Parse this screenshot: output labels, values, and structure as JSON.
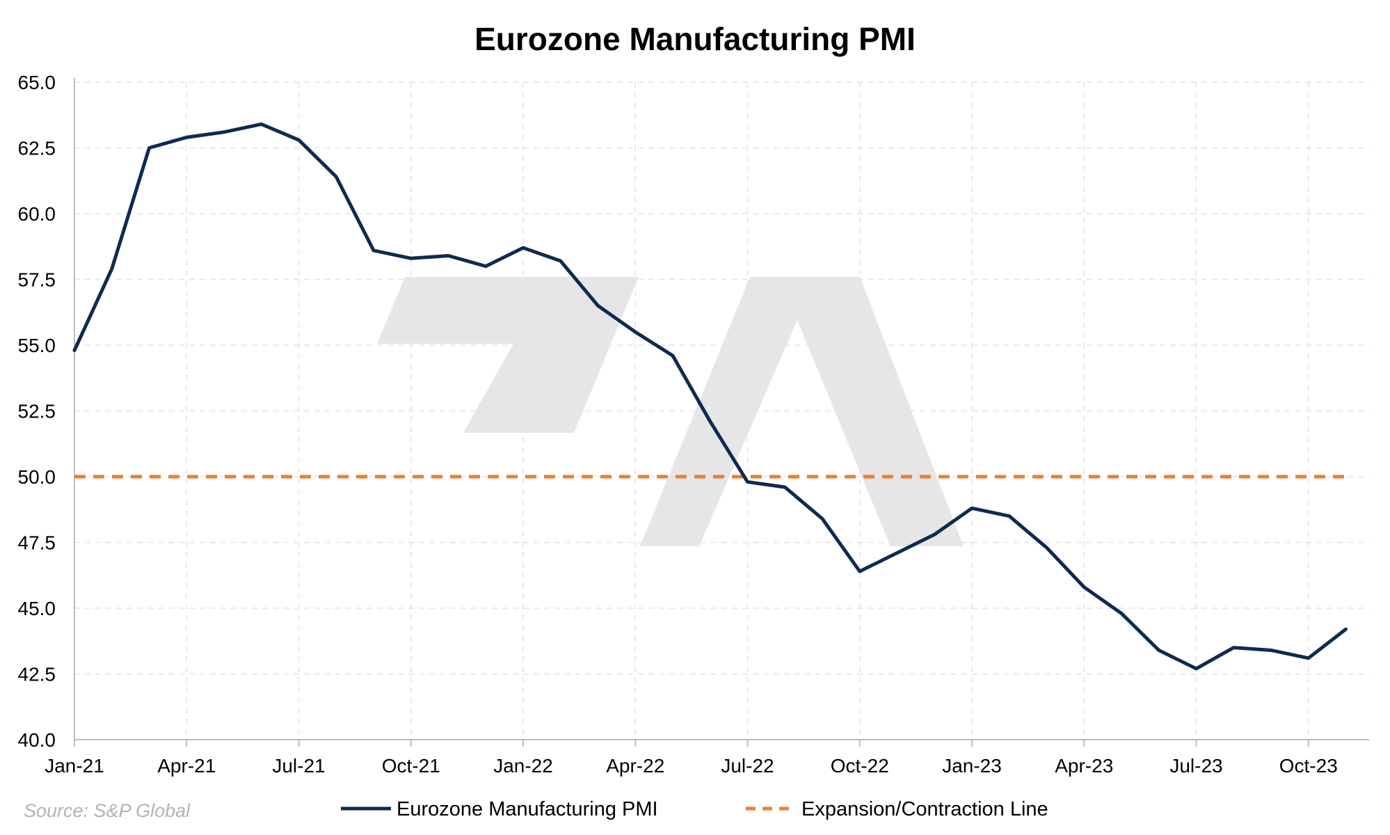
{
  "chart_data": {
    "type": "line",
    "title": "Eurozone Manufacturing PMI",
    "xlabel": "",
    "ylabel": "",
    "ylim": [
      40.0,
      65.0
    ],
    "yticks": [
      "40.0",
      "42.5",
      "45.0",
      "47.5",
      "50.0",
      "52.5",
      "55.0",
      "57.5",
      "60.0",
      "62.5",
      "65.0"
    ],
    "xticks": [
      {
        "label": "Jan-21",
        "index": 0
      },
      {
        "label": "Apr-21",
        "index": 3
      },
      {
        "label": "Jul-21",
        "index": 6
      },
      {
        "label": "Oct-21",
        "index": 9
      },
      {
        "label": "Jan-22",
        "index": 12
      },
      {
        "label": "Apr-22",
        "index": 15
      },
      {
        "label": "Jul-22",
        "index": 18
      },
      {
        "label": "Oct-22",
        "index": 21
      },
      {
        "label": "Jan-23",
        "index": 24
      },
      {
        "label": "Apr-23",
        "index": 27
      },
      {
        "label": "Jul-23",
        "index": 30
      },
      {
        "label": "Oct-23",
        "index": 33
      }
    ],
    "x": [
      "Jan-21",
      "Feb-21",
      "Mar-21",
      "Apr-21",
      "May-21",
      "Jun-21",
      "Jul-21",
      "Aug-21",
      "Sep-21",
      "Oct-21",
      "Nov-21",
      "Dec-21",
      "Jan-22",
      "Feb-22",
      "Mar-22",
      "Apr-22",
      "May-22",
      "Jun-22",
      "Jul-22",
      "Aug-22",
      "Sep-22",
      "Oct-22",
      "Nov-22",
      "Dec-22",
      "Jan-23",
      "Feb-23",
      "Mar-23",
      "Apr-23",
      "May-23",
      "Jun-23",
      "Jul-23",
      "Aug-23",
      "Sep-23",
      "Oct-23",
      "Nov-23"
    ],
    "series": [
      {
        "name": "Eurozone Manufacturing PMI",
        "color": "#0f2a52",
        "style": "solid",
        "values": [
          54.8,
          57.9,
          62.5,
          62.9,
          63.1,
          63.4,
          62.8,
          61.4,
          58.6,
          58.3,
          58.4,
          58.0,
          58.7,
          58.2,
          56.5,
          55.5,
          54.6,
          52.1,
          49.8,
          49.6,
          48.4,
          46.4,
          47.1,
          47.8,
          48.8,
          48.5,
          47.3,
          45.8,
          44.8,
          43.4,
          42.7,
          43.5,
          43.4,
          43.1,
          44.2
        ]
      },
      {
        "name": "Expansion/Contraction Line",
        "color": "#ef7d2e",
        "style": "dashed",
        "values": [
          50.0,
          50.0,
          50.0,
          50.0,
          50.0,
          50.0,
          50.0,
          50.0,
          50.0,
          50.0,
          50.0,
          50.0,
          50.0,
          50.0,
          50.0,
          50.0,
          50.0,
          50.0,
          50.0,
          50.0,
          50.0,
          50.0,
          50.0,
          50.0,
          50.0,
          50.0,
          50.0,
          50.0,
          50.0,
          50.0,
          50.0,
          50.0,
          50.0,
          50.0,
          50.0
        ]
      }
    ],
    "grid": true,
    "legend": "bottom-center",
    "source": "Source: S&P Global"
  }
}
